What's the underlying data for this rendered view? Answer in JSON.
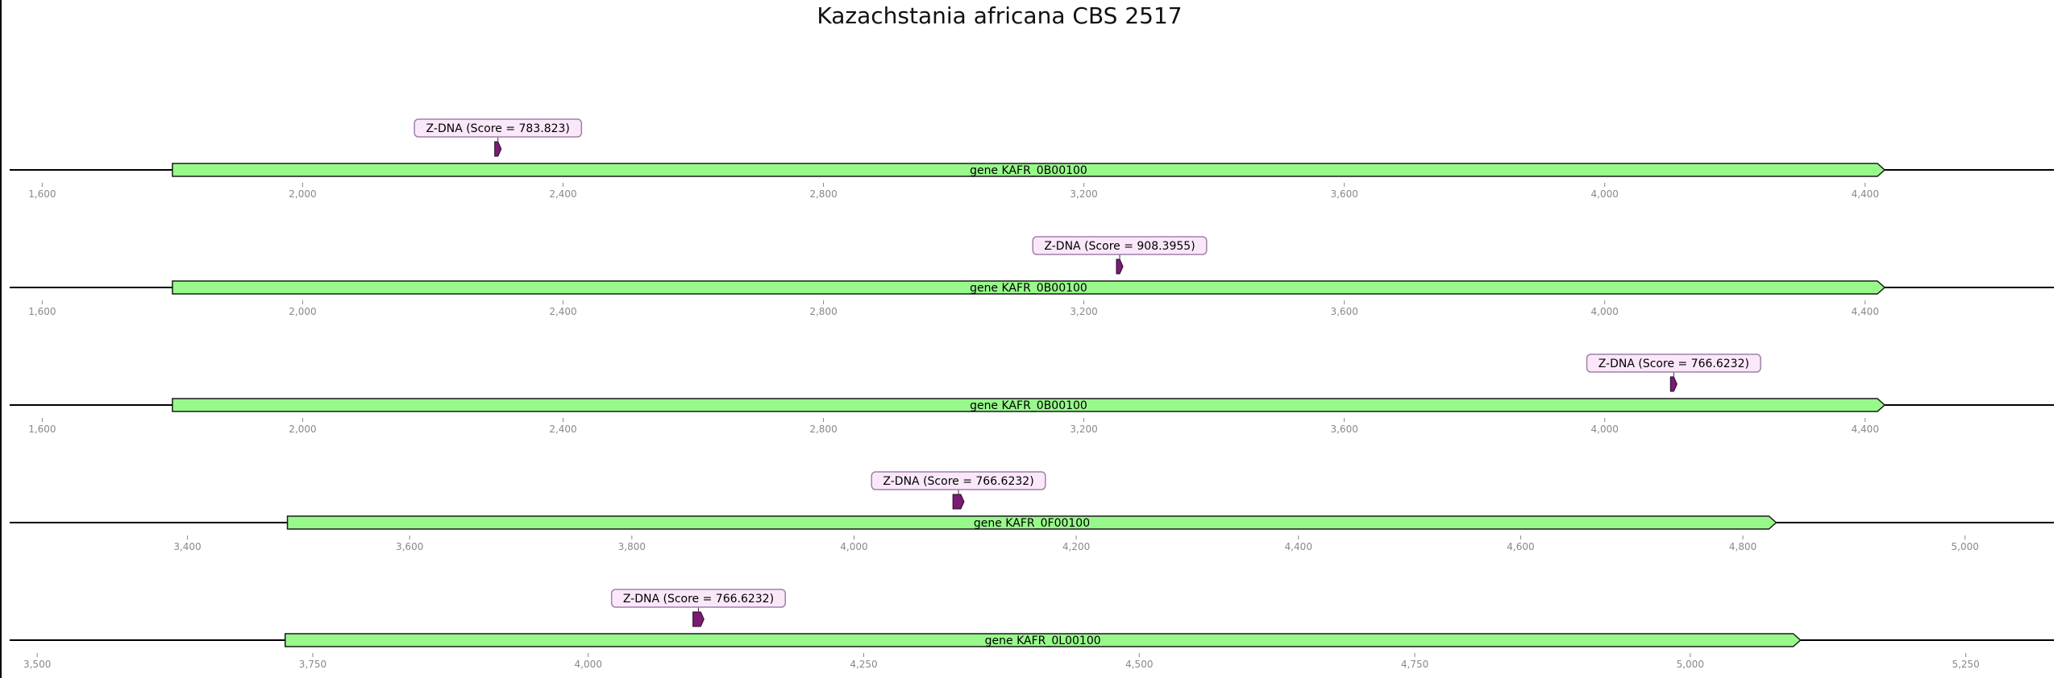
{
  "title": "Kazachstania africana CBS 2517",
  "colors": {
    "gene_fill": "#98f98b",
    "gene_stroke": "#1a1a1a",
    "feature_fill": "#7a1c72",
    "label_bg": "#fae8fa",
    "label_border": "#a080a8",
    "axis": "#888888",
    "line": "#000000"
  },
  "tracks": [
    {
      "range": [
        1550,
        4690
      ],
      "ticks": [
        "1,600",
        "2,000",
        "2,400",
        "2,800",
        "3,200",
        "3,600",
        "4,000",
        "4,400"
      ],
      "tick_values": [
        1600,
        2000,
        2400,
        2800,
        3200,
        3600,
        4000,
        4400
      ],
      "gene": {
        "label": "gene KAFR_0B00100",
        "start": 1800,
        "end": 4430,
        "strand": "+"
      },
      "feature": {
        "label": "Z-DNA (Score = 783.823)",
        "start": 2295,
        "end": 2305,
        "strand": "+"
      }
    },
    {
      "range": [
        1550,
        4690
      ],
      "ticks": [
        "1,600",
        "2,000",
        "2,400",
        "2,800",
        "3,200",
        "3,600",
        "4,000",
        "4,400"
      ],
      "tick_values": [
        1600,
        2000,
        2400,
        2800,
        3200,
        3600,
        4000,
        4400
      ],
      "gene": {
        "label": "gene KAFR_0B00100",
        "start": 1800,
        "end": 4430,
        "strand": "+"
      },
      "feature": {
        "label": "Z-DNA (Score = 908.3955)",
        "start": 3250,
        "end": 3260,
        "strand": "+"
      }
    },
    {
      "range": [
        1550,
        4690
      ],
      "ticks": [
        "1,600",
        "2,000",
        "2,400",
        "2,800",
        "3,200",
        "3,600",
        "4,000",
        "4,400"
      ],
      "tick_values": [
        1600,
        2000,
        2400,
        2800,
        3200,
        3600,
        4000,
        4400
      ],
      "gene": {
        "label": "gene KAFR_0B00100",
        "start": 1800,
        "end": 4430,
        "strand": "+"
      },
      "feature": {
        "label": "Z-DNA (Score = 766.6232)",
        "start": 4101,
        "end": 4111,
        "strand": "+"
      }
    },
    {
      "range": [
        3240,
        5080
      ],
      "ticks": [
        "3,400",
        "3,600",
        "3,800",
        "4,000",
        "4,200",
        "4,400",
        "4,600",
        "4,800",
        "5,000"
      ],
      "tick_values": [
        3400,
        3600,
        3800,
        4000,
        4200,
        4400,
        4600,
        4800,
        5000
      ],
      "gene": {
        "label": "gene KAFR_0F00100",
        "start": 3490,
        "end": 4830,
        "strand": "+"
      },
      "feature": {
        "label": "Z-DNA (Score = 766.6232)",
        "start": 4089,
        "end": 4099,
        "strand": "+"
      }
    },
    {
      "range": [
        3475,
        5330
      ],
      "ticks": [
        "3,500",
        "3,750",
        "4,000",
        "4,250",
        "4,500",
        "4,750",
        "5,000",
        "5,250"
      ],
      "tick_values": [
        3500,
        3750,
        4000,
        4250,
        4500,
        4750,
        5000,
        5250
      ],
      "gene": {
        "label": "gene KAFR_0L00100",
        "start": 3725,
        "end": 5100,
        "strand": "+"
      },
      "feature": {
        "label": "Z-DNA (Score = 766.6232)",
        "start": 4095,
        "end": 4105,
        "strand": "+"
      }
    }
  ]
}
